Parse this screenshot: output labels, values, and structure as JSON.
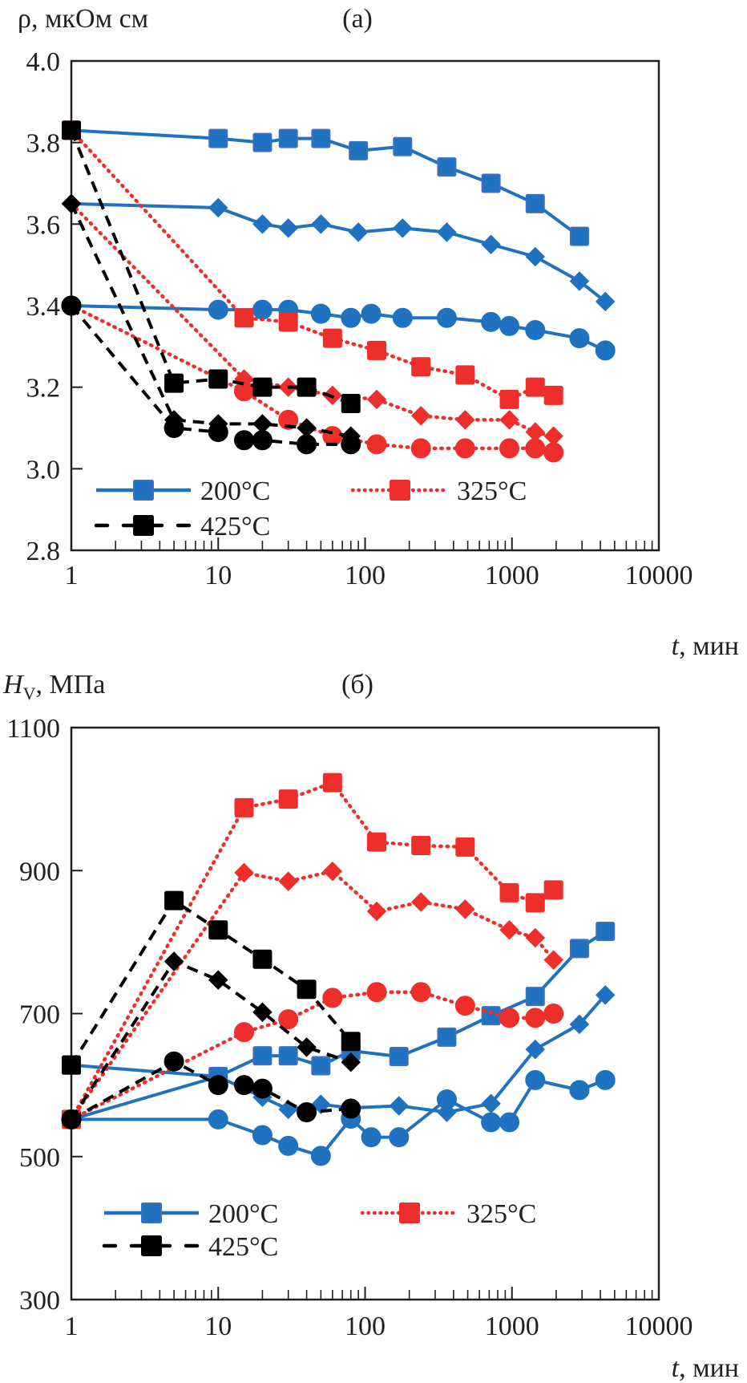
{
  "chart_data": [
    {
      "type": "line",
      "panel_label": "(а)",
      "title": "",
      "ylabel": "ρ, мкОм см",
      "xlabel_italic": "t",
      "xlabel_rest": ", мин",
      "xscale": "log",
      "xlim": [
        1,
        10000
      ],
      "ylim": [
        2.8,
        4.0
      ],
      "yticks": [
        "2.8",
        "3.0",
        "3.2",
        "3.4",
        "3.6",
        "3.8",
        "4.0"
      ],
      "ytick_values": [
        2.8,
        3.0,
        3.2,
        3.4,
        3.6,
        3.8,
        4.0
      ],
      "xticks": [
        "1",
        "10",
        "100",
        "1000",
        "10000"
      ],
      "xtick_values": [
        1,
        10,
        100,
        1000,
        10000
      ],
      "grid": false,
      "legend_position": "bottom-left",
      "legend": [
        {
          "label": "200°C",
          "temp": "200"
        },
        {
          "label": "325°C",
          "temp": "325"
        },
        {
          "label": "425°C",
          "temp": "425"
        }
      ],
      "series": [
        {
          "name": "200°C squares",
          "temp": "200",
          "marker": "square",
          "x": [
            1,
            10,
            20,
            30,
            50,
            90,
            180,
            360,
            720,
            1440,
            2880
          ],
          "y": [
            3.83,
            3.81,
            3.8,
            3.81,
            3.81,
            3.78,
            3.79,
            3.74,
            3.7,
            3.65,
            3.57
          ]
        },
        {
          "name": "200°C diamonds",
          "temp": "200",
          "marker": "diamond",
          "x": [
            1,
            10,
            20,
            30,
            50,
            90,
            180,
            360,
            720,
            1440,
            2880,
            4320
          ],
          "y": [
            3.65,
            3.64,
            3.6,
            3.59,
            3.6,
            3.58,
            3.59,
            3.58,
            3.55,
            3.52,
            3.46,
            3.41
          ]
        },
        {
          "name": "200°C circles",
          "temp": "200",
          "marker": "circle",
          "x": [
            1,
            10,
            20,
            30,
            50,
            80,
            110,
            180,
            360,
            720,
            960,
            1440,
            2880,
            4320
          ],
          "y": [
            3.4,
            3.39,
            3.39,
            3.39,
            3.38,
            3.37,
            3.38,
            3.37,
            3.37,
            3.36,
            3.35,
            3.34,
            3.32,
            3.29
          ]
        },
        {
          "name": "325°C squares",
          "temp": "325",
          "marker": "square",
          "x": [
            1,
            15,
            30,
            60,
            120,
            240,
            480,
            960,
            1440,
            1920
          ],
          "y": [
            3.83,
            3.37,
            3.36,
            3.32,
            3.29,
            3.25,
            3.23,
            3.17,
            3.2,
            3.18
          ]
        },
        {
          "name": "325°C diamonds",
          "temp": "325",
          "marker": "diamond",
          "x": [
            1,
            15,
            30,
            60,
            120,
            240,
            480,
            960,
            1440,
            1920
          ],
          "y": [
            3.65,
            3.22,
            3.2,
            3.18,
            3.17,
            3.13,
            3.12,
            3.12,
            3.09,
            3.08
          ]
        },
        {
          "name": "325°C circles",
          "temp": "325",
          "marker": "circle",
          "x": [
            1,
            15,
            30,
            60,
            120,
            240,
            480,
            960,
            1440,
            1920
          ],
          "y": [
            3.4,
            3.19,
            3.12,
            3.08,
            3.06,
            3.05,
            3.05,
            3.05,
            3.05,
            3.04
          ]
        },
        {
          "name": "425°C squares",
          "temp": "425",
          "marker": "square",
          "x": [
            1,
            5,
            10,
            20,
            40,
            80
          ],
          "y": [
            3.83,
            3.21,
            3.22,
            3.2,
            3.2,
            3.16
          ]
        },
        {
          "name": "425°C diamonds",
          "temp": "425",
          "marker": "diamond",
          "x": [
            1,
            5,
            10,
            20,
            40,
            80
          ],
          "y": [
            3.65,
            3.12,
            3.11,
            3.11,
            3.1,
            3.08
          ]
        },
        {
          "name": "425°C circles",
          "temp": "425",
          "marker": "circle",
          "x": [
            1,
            5,
            10,
            15,
            20,
            40,
            80
          ],
          "y": [
            3.4,
            3.1,
            3.09,
            3.07,
            3.07,
            3.06,
            3.06
          ]
        }
      ]
    },
    {
      "type": "line",
      "panel_label": "(б)",
      "title": "",
      "ylabel_italic": "H",
      "ylabel_sub": "V",
      "ylabel_rest": ", МПа",
      "xlabel_italic": "t",
      "xlabel_rest": ", мин",
      "xscale": "log",
      "xlim": [
        1,
        10000
      ],
      "ylim": [
        300,
        1100
      ],
      "yticks": [
        "300",
        "500",
        "700",
        "900",
        "1100"
      ],
      "ytick_values": [
        300,
        500,
        700,
        900,
        1100
      ],
      "xticks": [
        "1",
        "10",
        "100",
        "1000",
        "10000"
      ],
      "xtick_values": [
        1,
        10,
        100,
        1000,
        10000
      ],
      "grid": false,
      "legend_position": "bottom-left",
      "legend": [
        {
          "label": "200°C",
          "temp": "200"
        },
        {
          "label": "325°C",
          "temp": "325"
        },
        {
          "label": "425°C",
          "temp": "425"
        }
      ],
      "series": [
        {
          "name": "200°C squares",
          "temp": "200",
          "marker": "square",
          "x": [
            1,
            10,
            20,
            30,
            50,
            80,
            170,
            360,
            720,
            1440,
            2880,
            4320
          ],
          "y": [
            628,
            612,
            641,
            641,
            627,
            648,
            640,
            667,
            697,
            724,
            791,
            815
          ]
        },
        {
          "name": "200°C diamonds",
          "temp": "200",
          "marker": "diamond",
          "x": [
            1,
            10,
            20,
            30,
            50,
            80,
            170,
            360,
            720,
            1440,
            2880,
            4320
          ],
          "y": [
            552,
            612,
            583,
            566,
            573,
            568,
            571,
            562,
            574,
            650,
            685,
            726
          ]
        },
        {
          "name": "200°C circles",
          "temp": "200",
          "marker": "circle",
          "x": [
            1,
            10,
            20,
            30,
            50,
            80,
            110,
            170,
            360,
            720,
            960,
            1440,
            2880,
            4320
          ],
          "y": [
            552,
            552,
            530,
            515,
            501,
            553,
            527,
            527,
            580,
            548,
            548,
            607,
            593,
            607
          ]
        },
        {
          "name": "325°C squares",
          "temp": "325",
          "marker": "square",
          "x": [
            1,
            15,
            30,
            60,
            120,
            240,
            480,
            960,
            1440,
            1920
          ],
          "y": [
            552,
            988,
            1000,
            1023,
            940,
            935,
            933,
            869,
            855,
            873
          ]
        },
        {
          "name": "325°C diamonds",
          "temp": "325",
          "marker": "diamond",
          "x": [
            1,
            15,
            30,
            60,
            120,
            240,
            480,
            960,
            1440,
            1920
          ],
          "y": [
            552,
            897,
            885,
            899,
            843,
            856,
            846,
            817,
            806,
            775
          ]
        },
        {
          "name": "325°C circles",
          "temp": "325",
          "marker": "circle",
          "x": [
            1,
            15,
            30,
            60,
            120,
            240,
            480,
            960,
            1440,
            1920
          ],
          "y": [
            552,
            674,
            692,
            722,
            730,
            730,
            711,
            694,
            694,
            700
          ]
        },
        {
          "name": "425°C squares",
          "temp": "425",
          "marker": "square",
          "x": [
            1,
            5,
            10,
            20,
            40,
            80
          ],
          "y": [
            628,
            858,
            817,
            776,
            734,
            661
          ]
        },
        {
          "name": "425°C diamonds",
          "temp": "425",
          "marker": "diamond",
          "x": [
            1,
            5,
            10,
            20,
            40,
            80
          ],
          "y": [
            552,
            773,
            747,
            702,
            653,
            632
          ]
        },
        {
          "name": "425°C circles",
          "temp": "425",
          "marker": "circle",
          "x": [
            1,
            5,
            10,
            15,
            20,
            40,
            80
          ],
          "y": [
            552,
            633,
            600,
            600,
            595,
            562,
            567
          ]
        }
      ]
    }
  ],
  "colors": {
    "200": "#1f72bf",
    "325": "#ee2e2b",
    "425": "#000000",
    "axis": "#231f20"
  }
}
